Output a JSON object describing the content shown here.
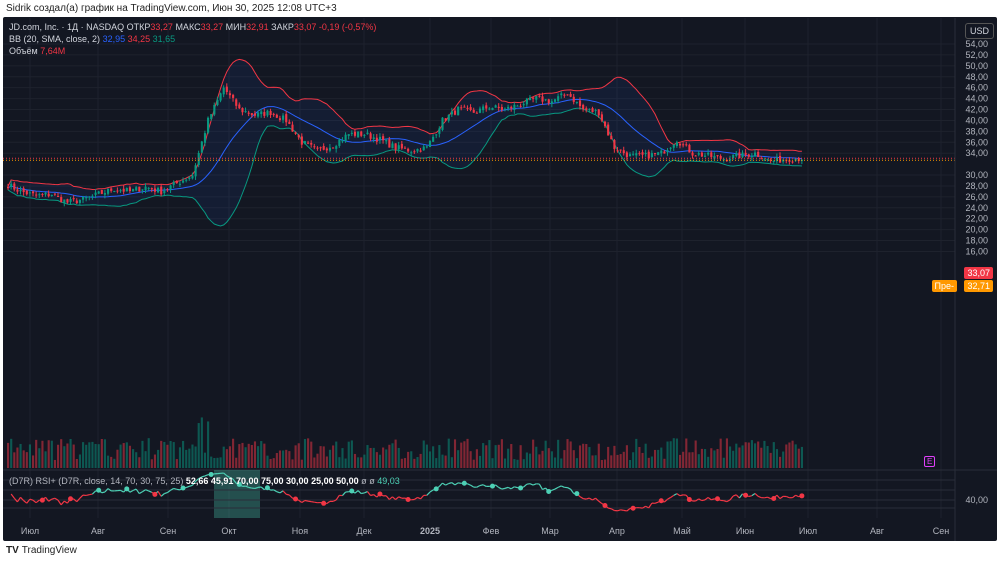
{
  "caption": "Sidrik создал(а) график на TradingView.com, Июн 30, 2025 12:08 UTC+3",
  "symbol": {
    "title": "JD.com, Inc. · 1Д · NASDAQ",
    "open_label": "ОТКР",
    "open": "33,27",
    "high_label": "МАКС",
    "high": "33,27",
    "low_label": "МИН",
    "low": "32,91",
    "close_label": "ЗАКР",
    "close": "33,07",
    "change": "-0,19 (-0,57%)"
  },
  "bb": {
    "label": "BB (20, SMA, close, 2)",
    "basis": "32,95",
    "upper": "34,25",
    "lower": "31,65"
  },
  "volume": {
    "label": "Объём",
    "value": "7,64M"
  },
  "rsi": {
    "label": "(D7R) RSI+ (D7R, close, 14, 70, 30, 75, 25)",
    "values": [
      "52,66",
      "45,91",
      "70,00",
      "75,00",
      "30,00",
      "25,00",
      "50,00",
      "ø",
      "ø"
    ],
    "last": "49,03",
    "axis": "40,00"
  },
  "currency": "USD",
  "price_axis": [
    "54,00",
    "52,00",
    "50,00",
    "48,00",
    "46,00",
    "44,00",
    "42,00",
    "40,00",
    "38,00",
    "36,00",
    "34,00",
    "30,00",
    "28,00",
    "26,00",
    "24,00",
    "22,00",
    "20,00",
    "18,00",
    "16,00"
  ],
  "price_ticks": [
    54,
    52,
    50,
    48,
    46,
    44,
    42,
    40,
    38,
    36,
    34,
    30,
    28,
    26,
    24,
    22,
    20,
    18,
    16
  ],
  "last_price": "33,07",
  "premarket": {
    "label": "Пре-",
    "price": "32,71"
  },
  "time_axis": [
    "Июл",
    "Авг",
    "Сен",
    "Окт",
    "Ноя",
    "Дек",
    "2025",
    "Фев",
    "Мар",
    "Апр",
    "Май",
    "Июн",
    "Июл",
    "Авг",
    "Сен"
  ],
  "weekly_closes": [
    28.5,
    27,
    26.2,
    26.5,
    25,
    25.5,
    26.5,
    27.5,
    27,
    27.8,
    27,
    28.5,
    30,
    40,
    46,
    42,
    41,
    41.5,
    40,
    36,
    34.5,
    35.5,
    37.5,
    37.5,
    36.5,
    35,
    34.5,
    35,
    40,
    42,
    41.5,
    42.5,
    42,
    43,
    44,
    43.5,
    45,
    42,
    41.5,
    35,
    33.5,
    33.5,
    34,
    36.5,
    34,
    33.5,
    33,
    33.5,
    34,
    32.5,
    33,
    33.07
  ],
  "earnings_marker": "E",
  "brand": "TradingView",
  "colors": {
    "up": "#089981",
    "down": "#f23645",
    "basis": "#2962ff",
    "upper": "#f23645",
    "lower": "#089981"
  }
}
